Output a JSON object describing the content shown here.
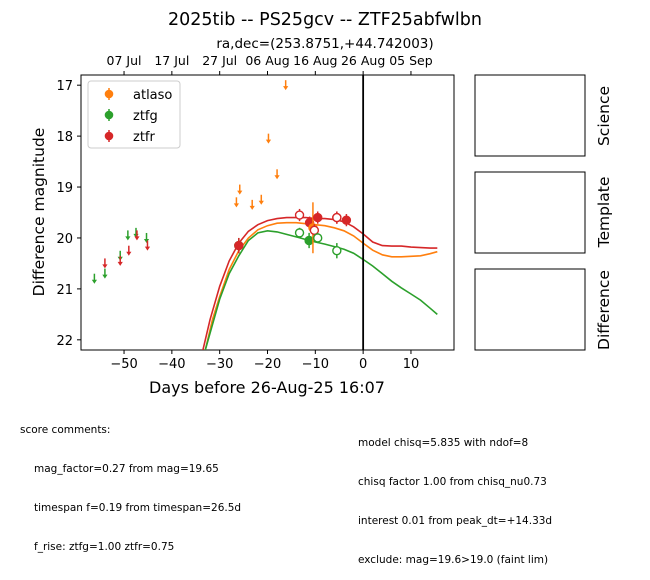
{
  "figure": {
    "title": "2025tib -- PS25gcv -- ZTF25abfwlbn",
    "subtitle": "ra,dec=(253.8751,+44.742003)"
  },
  "chart_data": {
    "type": "scatter",
    "xlabel": "Days before 26-Aug-25 16:07",
    "ylabel": "Difference magnitude",
    "xlim": [
      -59,
      19
    ],
    "ylim": [
      22.2,
      16.8
    ],
    "y_inverted": true,
    "x_ticks": [
      -50,
      -40,
      -30,
      -20,
      -10,
      0,
      10
    ],
    "y_ticks": [
      17,
      18,
      19,
      20,
      21,
      22
    ],
    "top_axis_dates": [
      {
        "label": "07 Jul",
        "x": -50
      },
      {
        "label": "17 Jul",
        "x": -40
      },
      {
        "label": "27 Jul",
        "x": -30
      },
      {
        "label": "06 Aug",
        "x": -20
      },
      {
        "label": "16 Aug",
        "x": -10
      },
      {
        "label": "26 Aug",
        "x": 0
      },
      {
        "label": "05 Sep",
        "x": 10
      }
    ],
    "vline_x": 0,
    "legend": {
      "placement": "upper-left",
      "entries": [
        "atlaso",
        "ztfg",
        "ztfr"
      ]
    },
    "colors": {
      "atlaso": "#ff7f0e",
      "ztfg": "#2ca02c",
      "ztfr": "#d62728"
    },
    "upper_limits": {
      "atlaso": [
        [
          -26.5,
          19.3
        ],
        [
          -25.8,
          19.05
        ],
        [
          -23.2,
          19.35
        ],
        [
          -21.3,
          19.25
        ],
        [
          -19.8,
          18.05
        ],
        [
          -18.0,
          18.75
        ],
        [
          -16.2,
          17.0
        ]
      ],
      "ztfg": [
        [
          -56.2,
          20.8
        ],
        [
          -54.0,
          20.7
        ],
        [
          -50.8,
          20.35
        ],
        [
          -49.2,
          19.95
        ],
        [
          -47.5,
          19.9
        ],
        [
          -45.3,
          20.0
        ]
      ],
      "ztfr": [
        [
          -54.0,
          20.5
        ],
        [
          -50.8,
          20.45
        ],
        [
          -49.0,
          20.25
        ],
        [
          -47.3,
          19.95
        ],
        [
          -45.1,
          20.15
        ]
      ]
    },
    "detections": [
      {
        "series": "ztfg",
        "x": -26.0,
        "y": 20.15,
        "err": 0.15,
        "filled": true
      },
      {
        "series": "ztfr",
        "x": -26.0,
        "y": 20.15,
        "err": 0.15,
        "filled": true
      },
      {
        "series": "ztfg",
        "x": -13.3,
        "y": 19.9,
        "err": 0.1,
        "filled": false
      },
      {
        "series": "ztfr",
        "x": -13.3,
        "y": 19.55,
        "err": 0.12,
        "filled": false
      },
      {
        "series": "ztfg",
        "x": -11.3,
        "y": 20.05,
        "err": 0.15,
        "filled": true
      },
      {
        "series": "ztfr",
        "x": -11.2,
        "y": 19.7,
        "err": 0.12,
        "filled": true
      },
      {
        "series": "atlaso",
        "x": -10.5,
        "y": 19.8,
        "err": 0.5,
        "filled": true
      },
      {
        "series": "ztfr",
        "x": -10.2,
        "y": 19.85,
        "err": 0.12,
        "filled": false
      },
      {
        "series": "ztfg",
        "x": -9.5,
        "y": 20.0,
        "err": 0.1,
        "filled": false
      },
      {
        "series": "ztfr",
        "x": -9.5,
        "y": 19.6,
        "err": 0.12,
        "filled": true
      },
      {
        "series": "ztfr",
        "x": -5.5,
        "y": 19.6,
        "err": 0.12,
        "filled": true
      },
      {
        "series": "ztfr",
        "x": -5.5,
        "y": 19.6,
        "err": 0.12,
        "filled": false
      },
      {
        "series": "ztfg",
        "x": -5.5,
        "y": 20.25,
        "err": 0.15,
        "filled": false
      },
      {
        "series": "ztfr",
        "x": -3.5,
        "y": 19.65,
        "err": 0.12,
        "filled": true
      }
    ],
    "model_curves": {
      "ztfr": {
        "x": [
          -33.5,
          -32,
          -30,
          -28,
          -26,
          -24,
          -22,
          -20,
          -18,
          -16,
          -14,
          -12,
          -10,
          -8,
          -6,
          -4,
          -2,
          0,
          2,
          4,
          6,
          8,
          10,
          12,
          14,
          15.5
        ],
        "y": [
          22.2,
          21.6,
          20.95,
          20.45,
          20.1,
          19.87,
          19.74,
          19.66,
          19.62,
          19.6,
          19.6,
          19.6,
          19.62,
          19.62,
          19.64,
          19.68,
          19.78,
          19.92,
          20.08,
          20.15,
          20.16,
          20.16,
          20.18,
          20.19,
          20.2,
          20.2
        ]
      },
      "atlaso": {
        "x": [
          -33,
          -31.5,
          -30,
          -28,
          -26,
          -24,
          -22,
          -20,
          -18,
          -16,
          -14,
          -12,
          -10,
          -8,
          -6,
          -4,
          -2,
          0,
          2,
          4,
          6,
          8,
          10,
          12,
          14,
          15.5
        ],
        "y": [
          22.2,
          21.6,
          21.15,
          20.62,
          20.25,
          20.0,
          19.84,
          19.76,
          19.71,
          19.7,
          19.7,
          19.72,
          19.74,
          19.76,
          19.8,
          19.86,
          19.96,
          20.1,
          20.24,
          20.33,
          20.37,
          20.37,
          20.36,
          20.35,
          20.31,
          20.27
        ]
      },
      "ztfg": {
        "x": [
          -33,
          -31.5,
          -30,
          -28,
          -26,
          -24,
          -22,
          -20,
          -18,
          -16,
          -14,
          -12,
          -10,
          -8,
          -6,
          -4,
          -2,
          0,
          2,
          4,
          6,
          8,
          10,
          12,
          14,
          15.5
        ],
        "y": [
          22.2,
          21.7,
          21.2,
          20.7,
          20.35,
          20.05,
          19.9,
          19.86,
          19.88,
          19.93,
          19.98,
          20.03,
          20.08,
          20.12,
          20.17,
          20.22,
          20.3,
          20.42,
          20.55,
          20.7,
          20.85,
          20.98,
          21.1,
          21.22,
          21.38,
          21.5
        ]
      }
    }
  },
  "panels": {
    "labels": [
      "Science",
      "Template",
      "Difference"
    ]
  },
  "comments": {
    "left_heading": "score comments:",
    "left_lines": [
      "mag_factor=0.27 from mag=19.65",
      "timespan f=0.19 from timespan=26.5d",
      "f_rise: ztfg=1.00 ztfr=0.75"
    ],
    "right_lines": [
      "model chisq=5.835 with ndof=8",
      "chisq factor 1.00 from chisq_nu0.73",
      "interest 0.01 from peak_dt=+14.33d",
      "exclude: mag=19.6>19.0 (faint lim)"
    ]
  }
}
